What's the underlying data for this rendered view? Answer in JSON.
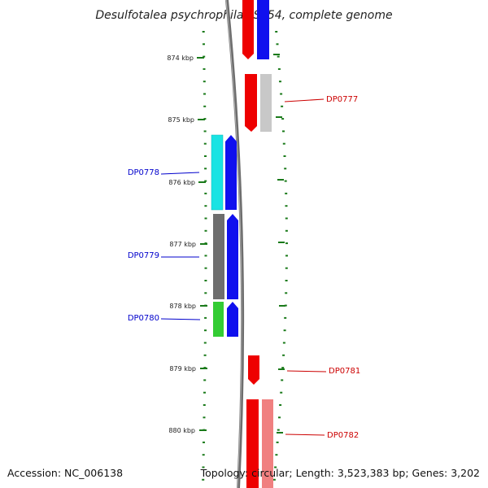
{
  "title": "Desulfotalea psychrophila LSv54, complete genome",
  "footer": {
    "accession": "Accession: NC_006138",
    "summary": "Topology: circular; Length: 3,523,383 bp; Genes: 3,202"
  },
  "scale": {
    "unit": "kbp",
    "ticks": [
      "874 kbp",
      "875 kbp",
      "876 kbp",
      "877 kbp",
      "878 kbp",
      "879 kbp",
      "880 kbp"
    ]
  },
  "colors": {
    "tick": "#1a7a1a",
    "backbone": "#808080",
    "label_left": "#0000cc",
    "label_right": "#cc0000"
  },
  "gene_labels": [
    {
      "id": "DP0777",
      "text": "DP0777",
      "side": "right"
    },
    {
      "id": "DP0778",
      "text": "DP0778",
      "side": "left"
    },
    {
      "id": "DP0779",
      "text": "DP0779",
      "side": "left"
    },
    {
      "id": "DP0780",
      "text": "DP0780",
      "side": "left"
    },
    {
      "id": "DP0781",
      "text": "DP0781",
      "side": "right"
    },
    {
      "id": "DP0782",
      "text": "DP0782",
      "side": "right"
    }
  ]
}
